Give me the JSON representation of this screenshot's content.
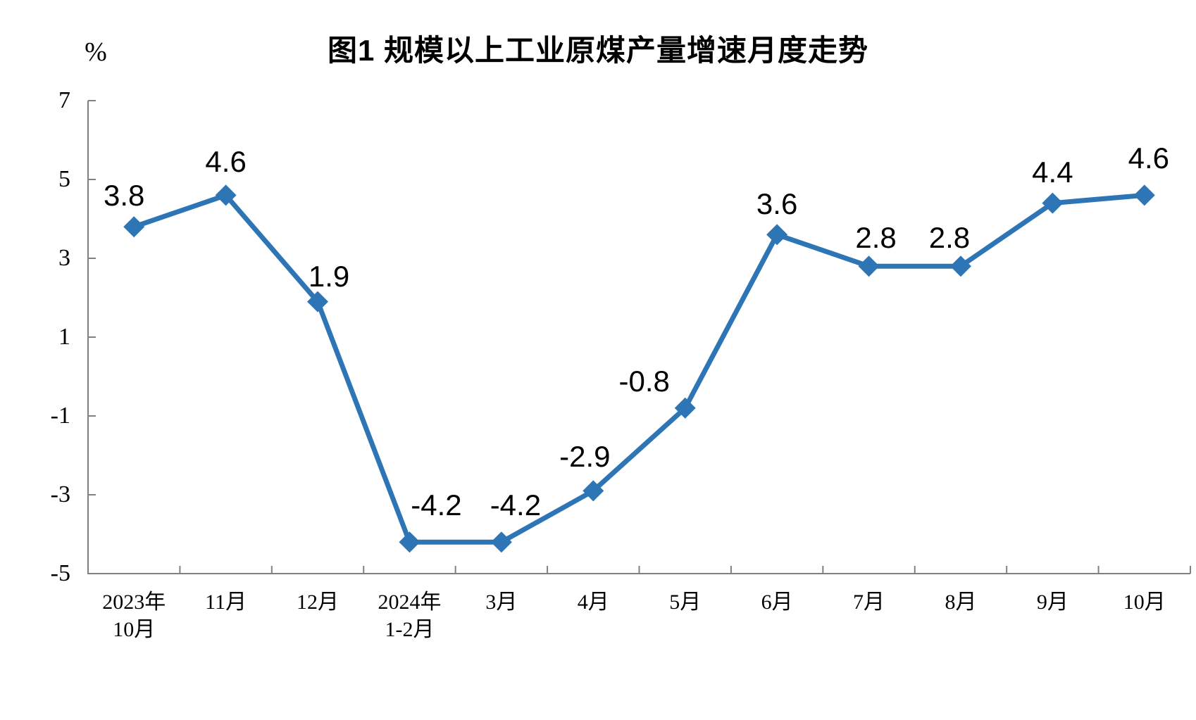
{
  "chart_data": {
    "type": "line",
    "title": "图1  规模以上工业原煤产量增速月度走势",
    "unit_label": "%",
    "categories": [
      "2023年\n10月",
      "11月",
      "12月",
      "2024年\n1-2月",
      "3月",
      "4月",
      "5月",
      "6月",
      "7月",
      "8月",
      "9月",
      "10月"
    ],
    "values": [
      3.8,
      4.6,
      1.9,
      -4.2,
      -4.2,
      -2.9,
      -0.8,
      3.6,
      2.8,
      2.8,
      4.4,
      4.6
    ],
    "data_labels": [
      "3.8",
      "4.6",
      "1.9",
      "-4.2",
      "-4.2",
      "-2.9",
      "-0.8",
      "3.6",
      "2.8",
      "2.8",
      "4.4",
      "4.6"
    ],
    "ylim": [
      -5,
      7
    ],
    "yticks": [
      7,
      5,
      3,
      1,
      -1,
      -3,
      -5
    ],
    "xlabel": "",
    "ylabel": "%",
    "grid": false,
    "legend": "none",
    "marker": "diamond",
    "colors": {
      "line": "#2E75B6",
      "axis": "#808080",
      "text": "#000000",
      "background": "#FFFFFF"
    }
  }
}
